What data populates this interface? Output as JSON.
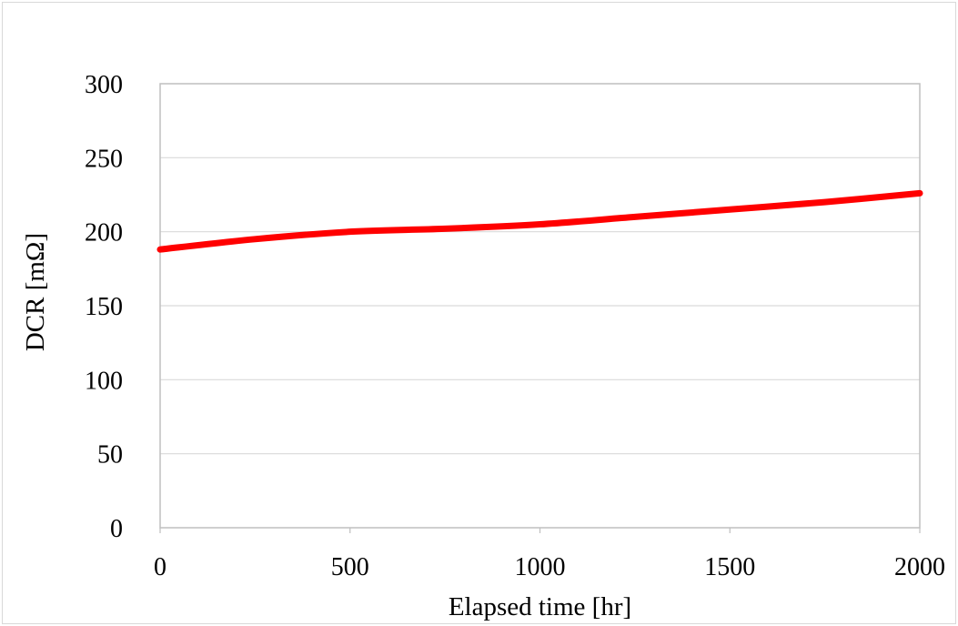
{
  "chart_data": {
    "type": "line",
    "title": "",
    "xlabel": "Elapsed time [hr]",
    "ylabel": "DCR [mΩ]",
    "xlim": [
      0,
      2000
    ],
    "ylim": [
      0,
      300
    ],
    "x_ticks": [
      0,
      500,
      1000,
      1500,
      2000
    ],
    "y_ticks": [
      0,
      50,
      100,
      150,
      200,
      250,
      300
    ],
    "grid": "horizontal",
    "legend": "none",
    "series": [
      {
        "color": "#ff0000",
        "x": [
          0,
          250,
          500,
          750,
          1000,
          1250,
          1500,
          1750,
          2000
        ],
        "y": [
          188,
          195,
          200,
          202,
          205,
          210,
          215,
          220,
          226
        ]
      }
    ]
  },
  "colors": {
    "line": "#ff0000",
    "grid": "#d9d9d9",
    "axis": "#bfbfbf",
    "frame": "#d9d9d9"
  }
}
